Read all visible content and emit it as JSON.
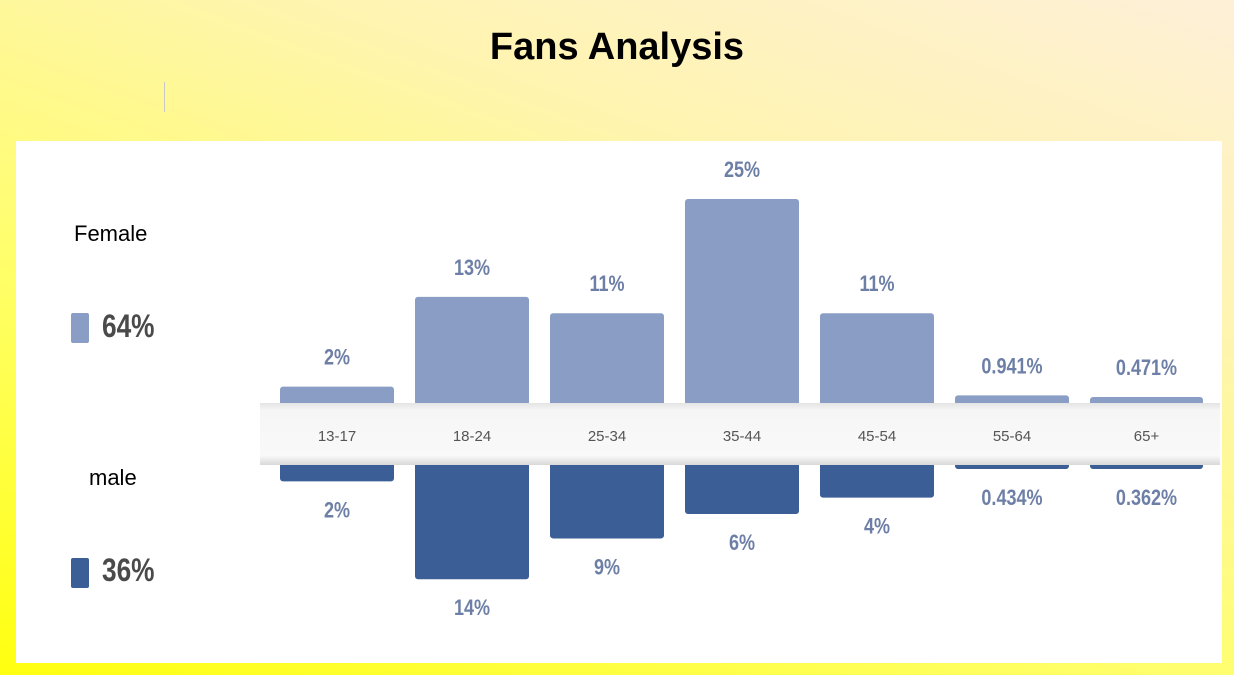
{
  "chart_data": {
    "type": "bar",
    "title": "Fans Analysis",
    "categories": [
      "13-17",
      "18-24",
      "25-34",
      "35-44",
      "45-54",
      "55-64",
      "65+"
    ],
    "series": [
      {
        "name": "Female",
        "total": "64%",
        "values": [
          2,
          13,
          11,
          25,
          11,
          0.941,
          0.471
        ],
        "labels": [
          "2%",
          "13%",
          "11%",
          "25%",
          "11%",
          "0.941%",
          "0.471%"
        ],
        "color": "#8a9dc4"
      },
      {
        "name": "male",
        "total": "36%",
        "values": [
          2,
          14,
          9,
          6,
          4,
          0.434,
          0.362
        ],
        "labels": [
          "2%",
          "14%",
          "9%",
          "6%",
          "4%",
          "0.434%",
          "0.362%"
        ],
        "color": "#3b5e96"
      }
    ],
    "label_color": "#6d7fa6",
    "ylim": [
      0,
      25
    ],
    "legend_position": "left"
  }
}
